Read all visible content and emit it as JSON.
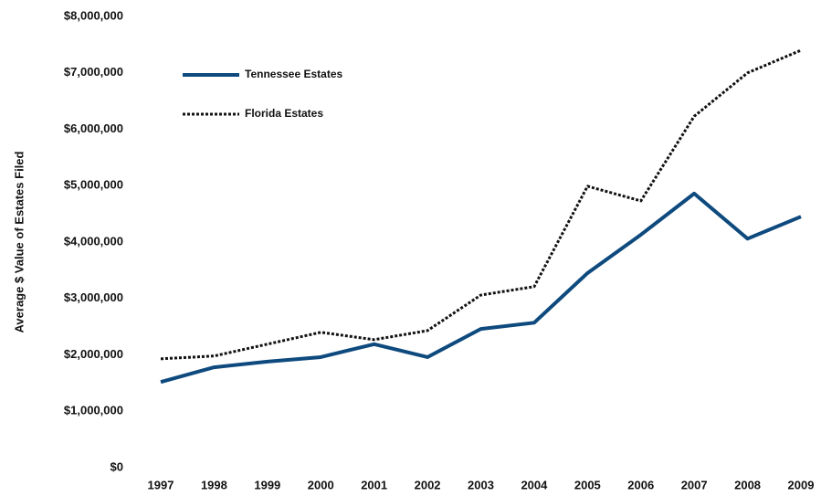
{
  "chart_data": {
    "type": "line",
    "y_label": "Average $ Value of Estates Filed",
    "categories": [
      "1997",
      "1998",
      "1999",
      "2000",
      "2001",
      "2002",
      "2003",
      "2004",
      "2005",
      "2006",
      "2007",
      "2008",
      "2009"
    ],
    "series": [
      {
        "name": "Tennessee Estates",
        "color": "#0e4a7e",
        "dash": "solid",
        "values": [
          1520000,
          1780000,
          1880000,
          1960000,
          2190000,
          1960000,
          2460000,
          2570000,
          3450000,
          4130000,
          4860000,
          4060000,
          4450000
        ]
      },
      {
        "name": "Florida Estates",
        "color": "#111111",
        "dash": "dotted",
        "values": [
          1930000,
          1980000,
          2190000,
          2400000,
          2270000,
          2430000,
          3060000,
          3210000,
          4990000,
          4730000,
          6230000,
          7000000,
          7400000
        ]
      }
    ],
    "ylim": [
      0,
      8000000
    ],
    "yticks": [
      {
        "value": 0,
        "label": "$0"
      },
      {
        "value": 1000000,
        "label": "$1,000,000"
      },
      {
        "value": 2000000,
        "label": "$2,000,000"
      },
      {
        "value": 3000000,
        "label": "$3,000,000"
      },
      {
        "value": 4000000,
        "label": "$4,000,000"
      },
      {
        "value": 5000000,
        "label": "$5,000,000"
      },
      {
        "value": 6000000,
        "label": "$6,000,000"
      },
      {
        "value": 7000000,
        "label": "$7,000,000"
      },
      {
        "value": 8000000,
        "label": "$8,000,000"
      }
    ],
    "grid": false,
    "legend": "upper-left"
  }
}
